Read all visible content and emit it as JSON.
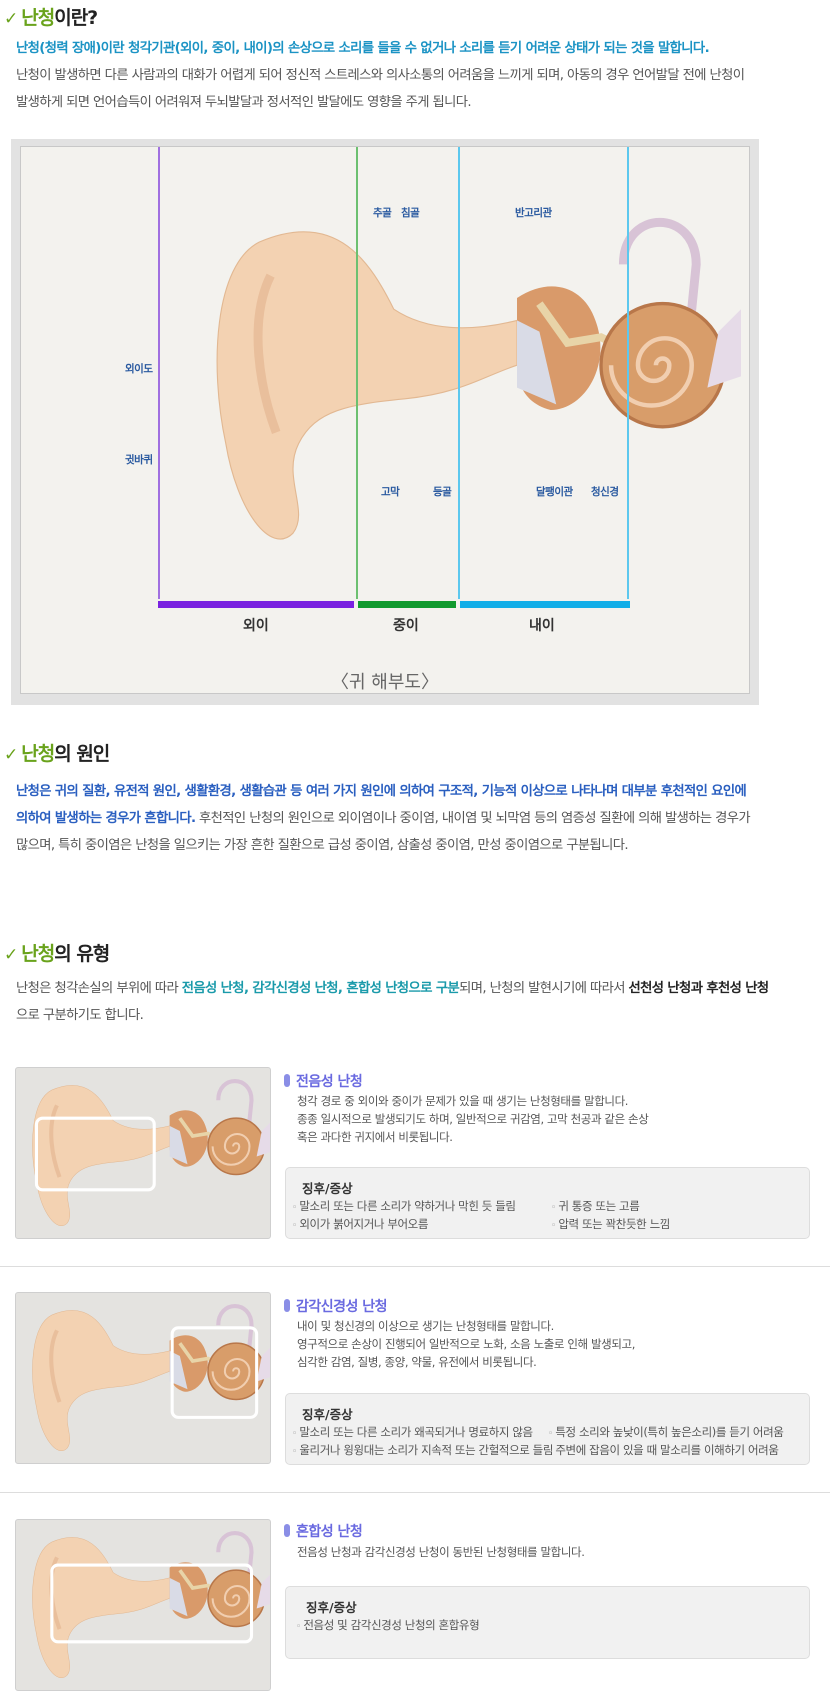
{
  "section1": {
    "check": "✓",
    "title_green": "난청",
    "title_rest": "이란?",
    "lines": [
      "난청(청력 장애)이란 청각기관(외이, 중이, 내이)의 손상으로 소리를 들을 수 없거나 소리를 듣기 어려운 상태가 되는 것을 말합니다.",
      "난청이 발생하면 다른 사람과의 대화가 어렵게 되어 정신적 스트레스와 의사소통의 어려움을 느끼게 되며, 아동의 경우 언어발달 전에 난청이",
      "발생하게 되면 언어습득이 어려워져 두뇌발달과 정서적인 발달에도 영향을 주게 됩니다."
    ]
  },
  "diagram": {
    "labels": {
      "ear_canal": "외이도",
      "auricle": "귓바퀴",
      "malleus": "추골",
      "incus": "침골",
      "semicircular": "반고리관",
      "eardrum": "고막",
      "stapes": "등골",
      "cochlea": "달팽이관",
      "nerve": "청신경"
    },
    "regions": [
      {
        "label": "외이",
        "color": "#7a22e0"
      },
      {
        "label": "중이",
        "color": "#119a2e"
      },
      {
        "label": "내이",
        "color": "#12aee8"
      }
    ],
    "caption": "〈귀 해부도〉"
  },
  "section2": {
    "check": "✓",
    "title_green": "난청",
    "title_rest": "의 원인",
    "line1": "난청은 귀의 질환, 유전적 원인, 생활환경, 생활습관 등 여러 가지 원인에 의하여 구조적, 기능적 이상으로 나타나며 대부분 후천적인 요인에",
    "line2_blue": "의하여 발생하는 경우가 흔합니다.",
    "line2_rest": " 후천적인 난청의 원인으로 외이염이나 중이염, 내이염 및 뇌막염 등의 염증성 질환에 의해 발생하는 경우가",
    "line3": "많으며, 특히 중이염은 난청을 일으키는 가장 흔한 질환으로 급성 중이염, 삼출성 중이염, 만성 중이염으로 구분됩니다."
  },
  "section3": {
    "check": "✓",
    "title_green": "난청",
    "title_rest": "의 유형",
    "l1a": "난청은 청각손실의 부위에 따라 ",
    "l1b": "전음성 난청, 감각신경성 난청, 혼합성 난청으로 구분",
    "l1c": "되며, 난청의 발현시기에 따라서 ",
    "l1d": "선천성 난청과 후천성 난청",
    "l2": "으로 구분하기도 합니다."
  },
  "types": [
    {
      "title": "전음성 난청",
      "desc": [
        "청각 경로 중 외이와 중이가 문제가 있을 때 생기는 난청형태를 말합니다.",
        "종종 일시적으로 발생되기도 하며, 일반적으로 귀감염, 고막 천공과 같은 손상",
        "혹은 과다한 귀지에서 비롯됩니다."
      ],
      "symptom_title": "징후/증상",
      "symptoms": [
        "말소리 또는 다른 소리가 약하거나 막힌 듯 들림",
        "외이가 붉어지거나 부어오름",
        "귀 통증 또는 고름",
        "압력 또는 꽉찬듯한 느낌"
      ]
    },
    {
      "title": "감각신경성 난청",
      "desc": [
        "내이 및 청신경의 이상으로 생기는 난청형태를 말합니다.",
        "영구적으로 손상이 진행되어 일반적으로 노화, 소음 노출로 인해 발생되고,",
        "심각한 감염, 질병, 종양, 약물, 유전에서 비롯됩니다."
      ],
      "symptom_title": "징후/증상",
      "symptoms": [
        "말소리 또는 다른 소리가 왜곡되거나 명료하지 않음",
        "울리거나 윙윙대는 소리가 지속적 또는 간헐적으로 들림",
        "특정 소리와 높낮이(특히 높은소리)를 듣기 어려움",
        "주변에 잡음이 있을 때 말소리를 이해하기 어려움"
      ]
    },
    {
      "title": "혼합성 난청",
      "desc": [
        "전음성 난청과 감각신경성 난청이 동반된 난청형태를 말합니다."
      ],
      "symptom_title": "징후/증상",
      "symptoms": [
        "전음성 및 감각신경성 난청의 혼합유형"
      ]
    }
  ]
}
